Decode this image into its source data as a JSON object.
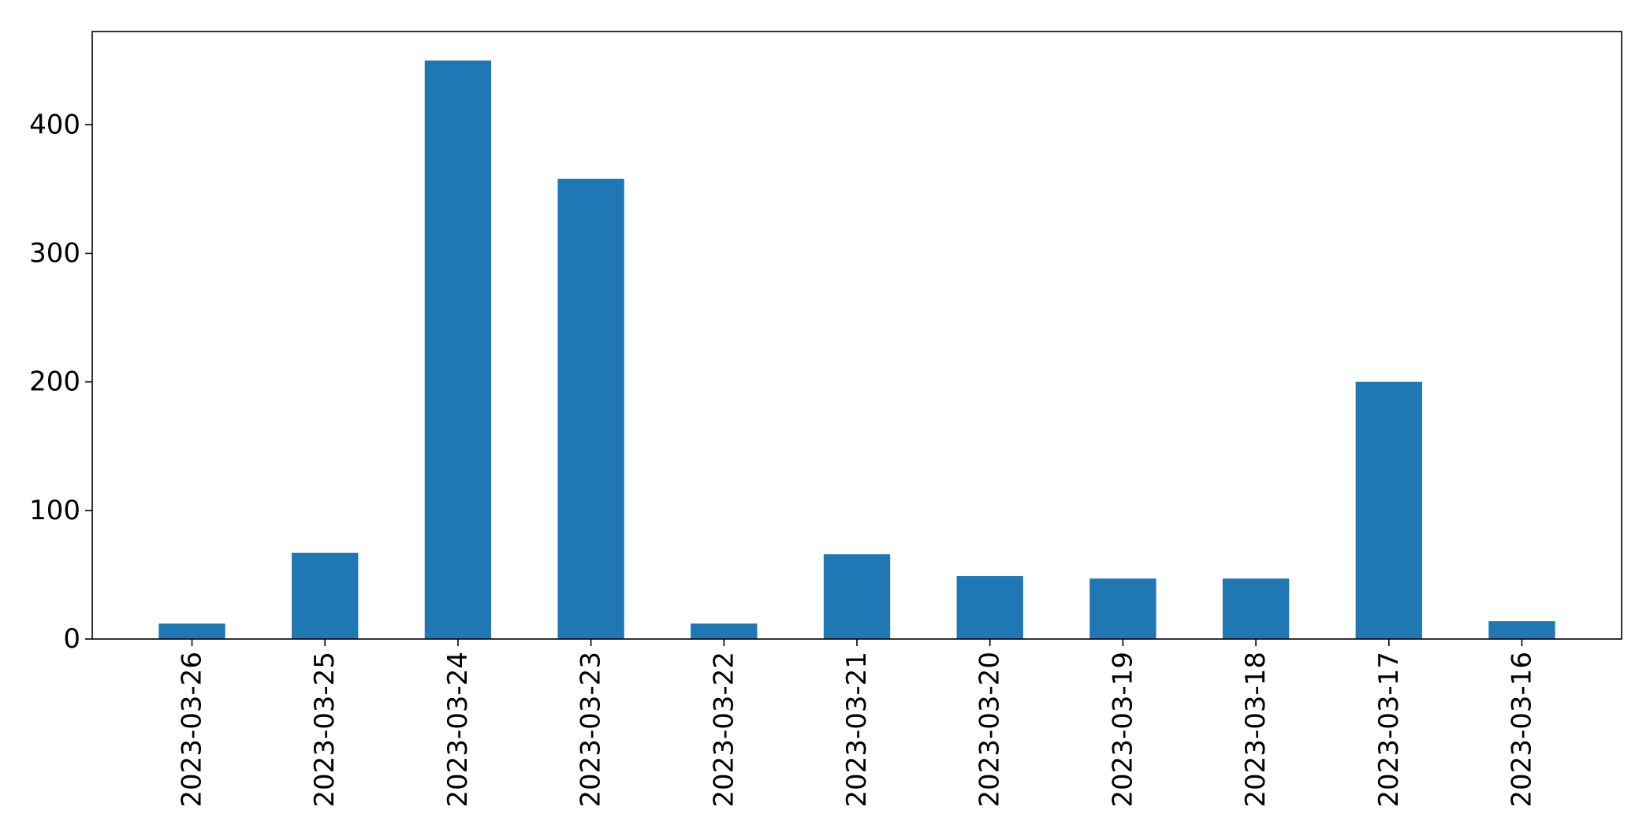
{
  "chart_data": {
    "type": "bar",
    "title": "",
    "xlabel": "",
    "ylabel": "",
    "categories": [
      "2023-03-26",
      "2023-03-25",
      "2023-03-24",
      "2023-03-23",
      "2023-03-22",
      "2023-03-21",
      "2023-03-20",
      "2023-03-19",
      "2023-03-18",
      "2023-03-17",
      "2023-03-16"
    ],
    "values": [
      12,
      67,
      450,
      358,
      12,
      66,
      49,
      47,
      47,
      200,
      14
    ],
    "yticks": [
      0,
      100,
      200,
      300,
      400
    ],
    "ytick_labels": [
      "0",
      "100",
      "200",
      "300",
      "400"
    ],
    "ylim": [
      0,
      472.5
    ],
    "grid": false,
    "legend": "none",
    "bar_color": "#1f77b4",
    "xtick_rotation": 90
  }
}
